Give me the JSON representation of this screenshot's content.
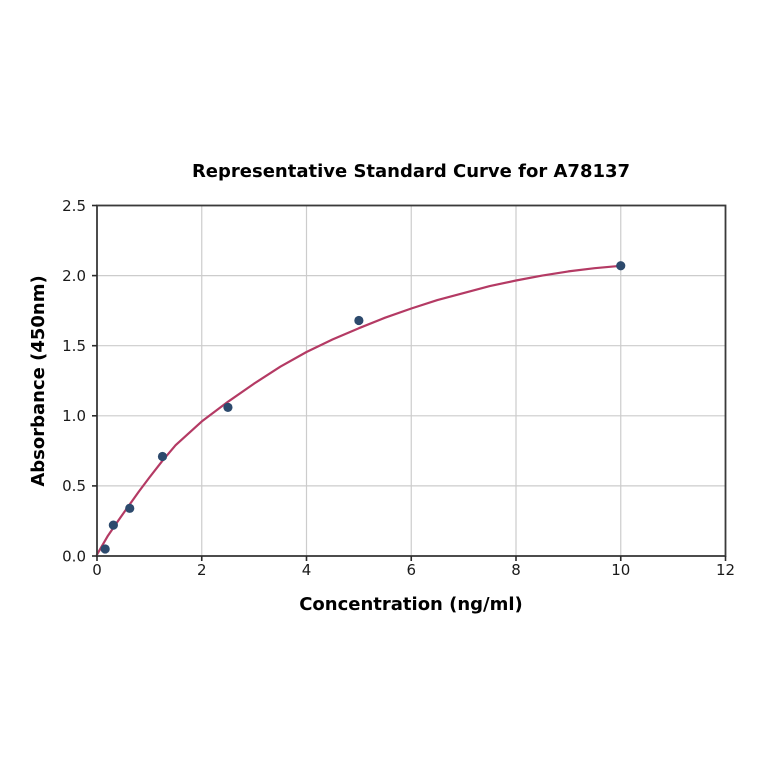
{
  "chart_data": {
    "type": "scatter",
    "title": "Representative Standard Curve for A78137",
    "xlabel": "Concentration (ng/ml)",
    "ylabel": "Absorbance (450nm)",
    "xlim": [
      0,
      12
    ],
    "ylim": [
      0,
      2.5
    ],
    "grid": true,
    "legend": "none",
    "xticks": {
      "values": [
        0,
        2,
        4,
        6,
        8,
        10,
        12
      ],
      "labels": [
        "0",
        "2",
        "4",
        "6",
        "8",
        "10",
        "12"
      ]
    },
    "yticks": {
      "values": [
        0,
        0.5,
        1.0,
        1.5,
        2.0,
        2.5
      ],
      "labels": [
        "0.0",
        "0.5",
        "1.0",
        "1.5",
        "2.0",
        "2.5"
      ]
    },
    "points": [
      {
        "x": 0.156,
        "y": 0.05
      },
      {
        "x": 0.3125,
        "y": 0.22
      },
      {
        "x": 0.625,
        "y": 0.34
      },
      {
        "x": 1.25,
        "y": 0.71
      },
      {
        "x": 2.5,
        "y": 1.06
      },
      {
        "x": 5,
        "y": 1.68
      },
      {
        "x": 10,
        "y": 2.07
      }
    ],
    "fit_curve": {
      "x": [
        0,
        0.2,
        0.4,
        0.6,
        0.8,
        1.0,
        1.25,
        1.5,
        2.0,
        2.5,
        3.0,
        3.5,
        4.0,
        4.5,
        5.0,
        5.5,
        6.0,
        6.5,
        7.0,
        7.5,
        8.0,
        8.5,
        9.0,
        9.5,
        10.0
      ],
      "y": [
        0.01,
        0.14,
        0.25,
        0.355,
        0.46,
        0.56,
        0.68,
        0.79,
        0.96,
        1.1,
        1.23,
        1.35,
        1.455,
        1.545,
        1.625,
        1.7,
        1.765,
        1.825,
        1.875,
        1.925,
        1.965,
        2.0,
        2.03,
        2.053,
        2.07
      ]
    },
    "colors": {
      "curve": "#b43a64",
      "marker": "#2d4a6d",
      "grid": "#cccccc",
      "spine": "#3a3a3a",
      "tick": "#2b2b2b",
      "background": "#ffffff"
    }
  }
}
